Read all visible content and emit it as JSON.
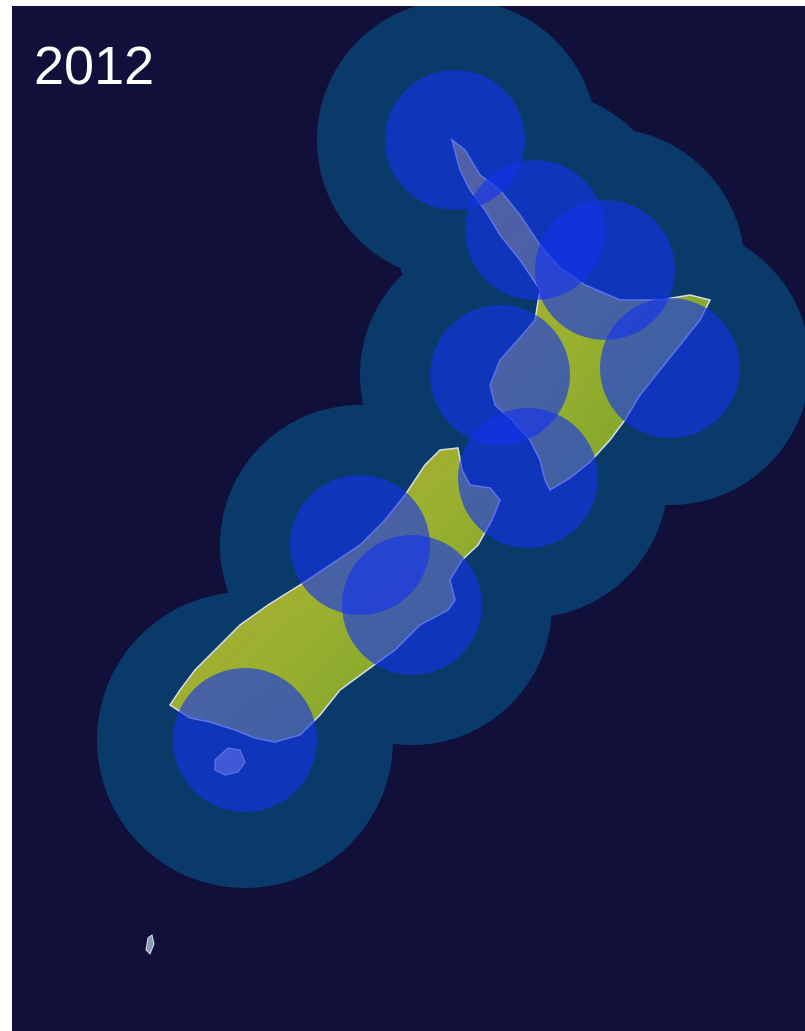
{
  "year_label": "2012",
  "colors": {
    "background": "#10103a",
    "outer_coverage": "#0a3a6a",
    "inner_coverage": "#1432ee",
    "land_green": "#7ea82a",
    "land_yellow": "#c8b43a",
    "land_covered": "#8a9ab4",
    "coast": "#d8dce8"
  },
  "layers": [
    "outer-coverage-zones",
    "inner-coverage-zones",
    "new-zealand-landmass"
  ]
}
